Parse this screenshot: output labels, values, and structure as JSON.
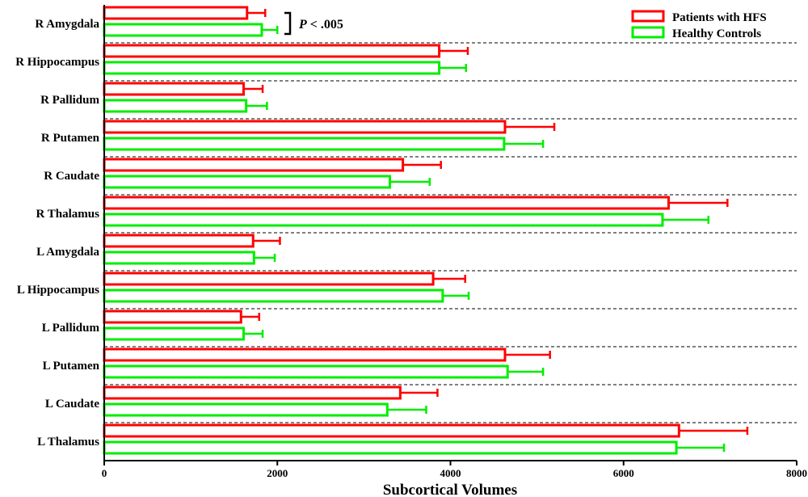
{
  "chart_data": {
    "type": "bar",
    "orientation": "horizontal",
    "categories": [
      "R Amygdala",
      "R Hippocampus",
      "R Pallidum",
      "R Putamen",
      "R Caudate",
      "R Thalamus",
      "L Amygdala",
      "L Hippocampus",
      "L Pallidum",
      "L Putamen",
      "L Caudate",
      "L Thalamus"
    ],
    "series": [
      {
        "name": "Patients with HFS",
        "color": "#ff0000",
        "values": [
          1650,
          3870,
          1610,
          4630,
          3450,
          6520,
          1720,
          3800,
          1580,
          4630,
          3420,
          6640
        ],
        "errors": [
          210,
          330,
          220,
          570,
          440,
          680,
          310,
          370,
          210,
          520,
          430,
          790
        ]
      },
      {
        "name": "Healthy Controls",
        "color": "#00ee00",
        "values": [
          1820,
          3870,
          1640,
          4620,
          3300,
          6450,
          1730,
          3910,
          1610,
          4660,
          3270,
          6610
        ],
        "errors": [
          180,
          310,
          240,
          450,
          460,
          530,
          240,
          300,
          220,
          410,
          450,
          550
        ]
      }
    ],
    "xlabel": "Subcortical Volumes",
    "ylabel": "",
    "xlim": [
      0,
      8000
    ],
    "xticks": [
      0,
      2000,
      4000,
      6000,
      8000
    ],
    "grid": "dashed separators between categories",
    "legend_position": "top-right",
    "annotation": {
      "prefix": "P",
      "text": " < .005",
      "category": "R Amygdala"
    }
  }
}
